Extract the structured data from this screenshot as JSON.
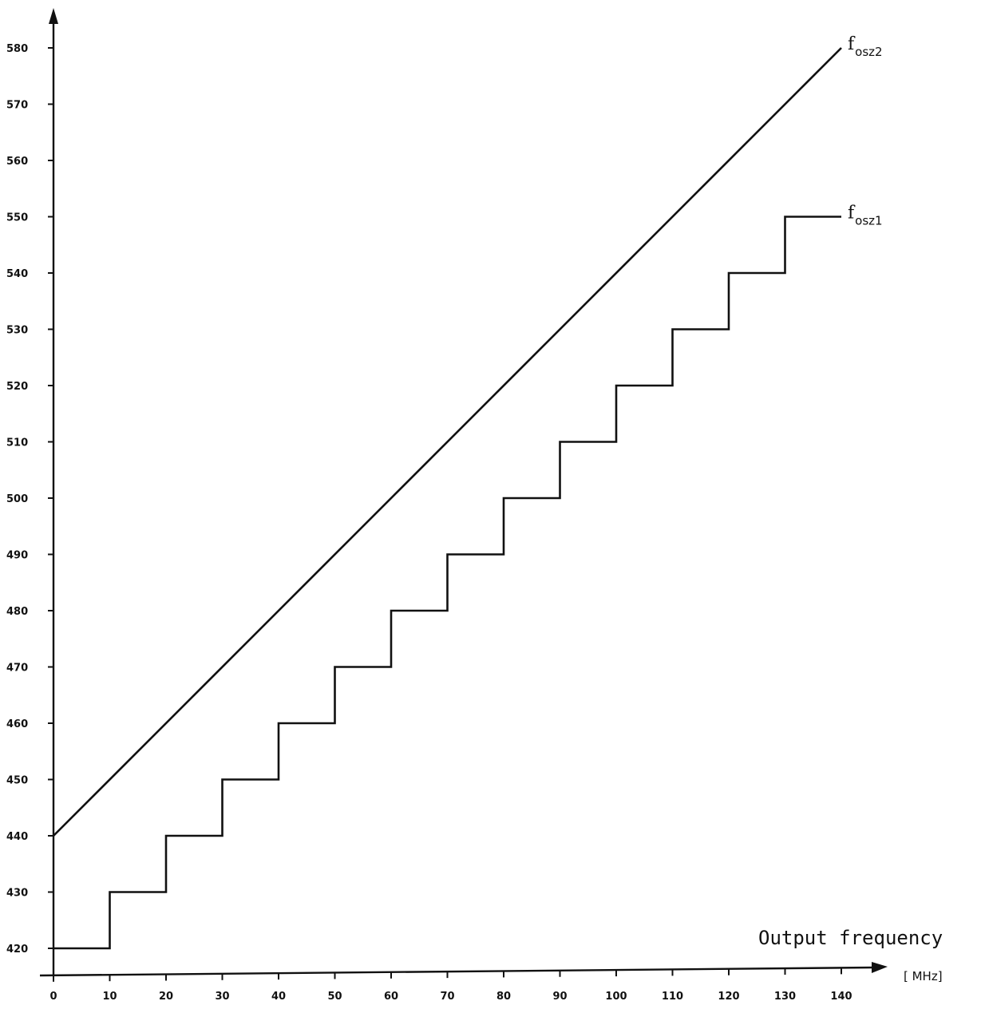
{
  "chart_data": {
    "type": "line",
    "title": "",
    "xlabel": "Output frequency",
    "xunit": "[ MHz]",
    "ylabel": "",
    "xlim": [
      0,
      140
    ],
    "ylim": [
      415,
      585
    ],
    "x_ticks": [
      0,
      10,
      20,
      30,
      40,
      50,
      60,
      70,
      80,
      90,
      100,
      110,
      120,
      130,
      140
    ],
    "y_ticks": [
      420,
      430,
      440,
      450,
      460,
      470,
      480,
      490,
      500,
      510,
      520,
      530,
      540,
      550,
      560,
      570,
      580
    ],
    "grid": false,
    "series": [
      {
        "name": "fosz2",
        "label_main": "f",
        "label_sub": "osz2",
        "style": "line",
        "x": [
          0,
          140
        ],
        "y": [
          440,
          580
        ]
      },
      {
        "name": "fosz1",
        "label_main": "f",
        "label_sub": "osz1",
        "style": "step",
        "x": [
          0,
          10,
          20,
          30,
          40,
          50,
          60,
          70,
          80,
          90,
          100,
          110,
          120,
          130,
          140
        ],
        "y": [
          420,
          430,
          440,
          450,
          460,
          470,
          480,
          490,
          500,
          510,
          520,
          530,
          540,
          550,
          550
        ]
      }
    ]
  }
}
